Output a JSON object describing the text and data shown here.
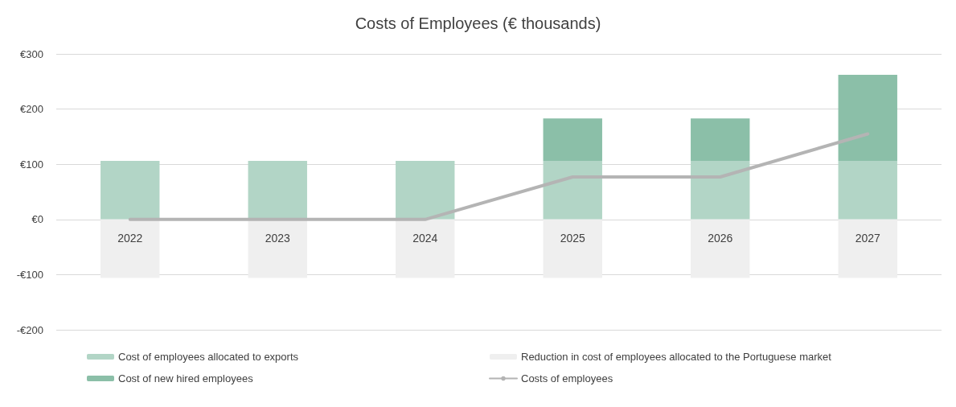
{
  "chart_data": {
    "type": "bar",
    "title": "Costs of Employees (€ thousands)",
    "categories": [
      "2022",
      "2023",
      "2024",
      "2025",
      "2026",
      "2027"
    ],
    "stacked": true,
    "series": [
      {
        "name": "Cost of employees allocated to exports",
        "color": "#b2d5c6",
        "values": [
          106,
          106,
          106,
          106,
          106,
          106
        ]
      },
      {
        "name": "Reduction in cost of employees allocated to the Portuguese market",
        "color": "#efefef",
        "values": [
          -106,
          -106,
          -106,
          -106,
          -106,
          -106
        ]
      },
      {
        "name": "Cost of new hired employees",
        "color": "#8bbfa8",
        "values": [
          0,
          0,
          0,
          77,
          77,
          156
        ]
      },
      {
        "name": "Costs of employees",
        "type": "line",
        "color": "#b4b4b4",
        "values": [
          0,
          0,
          0,
          77,
          77,
          155
        ],
        "marker": "none"
      }
    ],
    "ylim": [
      -200,
      300
    ],
    "yticks": [
      {
        "value": -200,
        "label": "-€200"
      },
      {
        "value": -100,
        "label": "-€100"
      },
      {
        "value": 0,
        "label": "€0"
      },
      {
        "value": 100,
        "label": "€100"
      },
      {
        "value": 200,
        "label": "€200"
      },
      {
        "value": 300,
        "label": "€300"
      }
    ],
    "grid": "y",
    "legend": "bottom"
  }
}
